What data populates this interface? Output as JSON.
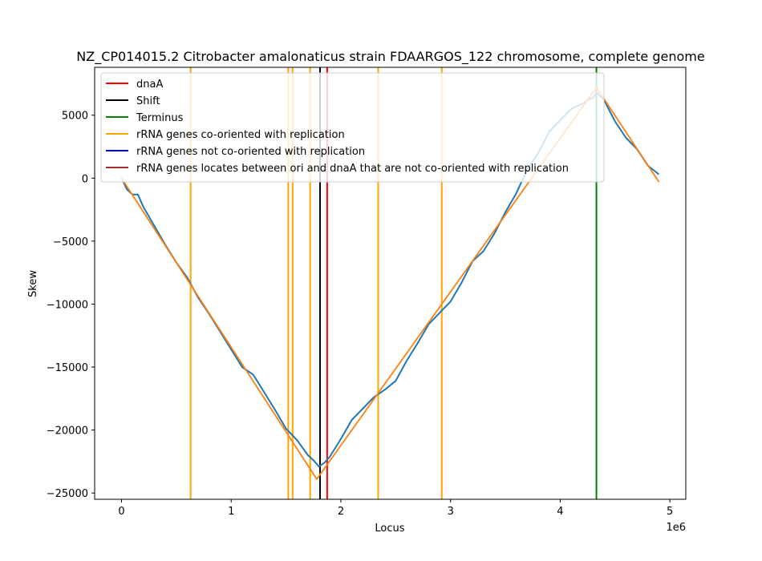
{
  "chart_data": {
    "type": "line",
    "title": "NZ_CP014015.2 Citrobacter amalonaticus strain FDAARGOS_122 chromosome, complete genome",
    "xlabel": "Locus",
    "ylabel": "Skew",
    "x_offset_label": "1e6",
    "xlim": [
      -0.245,
      5.145
    ],
    "ylim": [
      -25500,
      8800
    ],
    "x_ticks": [
      0,
      1,
      2,
      3,
      4,
      5
    ],
    "x_tick_labels": [
      "0",
      "1",
      "2",
      "3",
      "4",
      "5"
    ],
    "y_ticks": [
      5000,
      0,
      -5000,
      -10000,
      -15000,
      -20000,
      -25000
    ],
    "y_tick_labels": [
      "5000",
      "0",
      "−5000",
      "−10000",
      "−15000",
      "−20000",
      "−25000"
    ],
    "legend_position": "top-left",
    "legend": [
      {
        "label": "dnaA",
        "color": "#ff0000"
      },
      {
        "label": "Shift",
        "color": "#000000"
      },
      {
        "label": "Terminus",
        "color": "#008000"
      },
      {
        "label": "rRNA genes co-oriented with replication",
        "color": "#ffa500"
      },
      {
        "label": "rRNA genes not co-oriented with replication",
        "color": "#0000ff"
      },
      {
        "label": "rRNA genes locates between ori and dnaA that are not co-oriented with replication",
        "color": "#a52a2a"
      }
    ],
    "vertical_lines": [
      {
        "name": "rrna-line",
        "x": 0.63,
        "color": "#ffa500"
      },
      {
        "name": "rrna-line",
        "x": 1.52,
        "color": "#ffa500"
      },
      {
        "name": "rrna-line",
        "x": 1.56,
        "color": "#ffa500"
      },
      {
        "name": "rrna-line",
        "x": 1.72,
        "color": "#ffa500"
      },
      {
        "name": "rrna-line",
        "x": 2.34,
        "color": "#ffa500"
      },
      {
        "name": "rrna-line",
        "x": 2.92,
        "color": "#ffa500"
      },
      {
        "name": "shift-line",
        "x": 1.81,
        "color": "#000000"
      },
      {
        "name": "dnaa-line",
        "x": 1.875,
        "color": "#ff0000"
      },
      {
        "name": "terminus-line",
        "x": 4.33,
        "color": "#008000"
      }
    ],
    "series": [
      {
        "name": "Skew",
        "color": "#1f77b4",
        "x": [
          0,
          0.05,
          0.1,
          0.15,
          0.2,
          0.3,
          0.4,
          0.5,
          0.6,
          0.7,
          0.8,
          0.9,
          1.0,
          1.1,
          1.2,
          1.3,
          1.4,
          1.5,
          1.6,
          1.7,
          1.75,
          1.8,
          1.85,
          1.9,
          2.0,
          2.1,
          2.2,
          2.3,
          2.4,
          2.5,
          2.6,
          2.7,
          2.8,
          2.9,
          3.0,
          3.1,
          3.2,
          3.3,
          3.4,
          3.5,
          3.6,
          3.7,
          3.8,
          3.9,
          4.0,
          4.1,
          4.2,
          4.25,
          4.3,
          4.33,
          4.4,
          4.5,
          4.6,
          4.7,
          4.8,
          4.9
        ],
        "values": [
          0,
          -900,
          -1300,
          -1300,
          -2300,
          -3800,
          -5300,
          -6700,
          -7900,
          -9500,
          -10800,
          -12200,
          -13600,
          -15000,
          -15600,
          -17000,
          -18400,
          -19900,
          -20800,
          -22000,
          -22400,
          -22900,
          -22600,
          -22100,
          -20700,
          -19200,
          -18300,
          -17400,
          -16800,
          -16100,
          -14500,
          -13100,
          -11600,
          -10700,
          -9800,
          -8300,
          -6600,
          -5800,
          -4400,
          -2700,
          -1200,
          700,
          2000,
          3700,
          4600,
          5500,
          5900,
          6200,
          6400,
          6800,
          6200,
          4500,
          3200,
          2300,
          1000,
          300
        ]
      },
      {
        "name": "Fit",
        "color": "#ff7f0e",
        "x": [
          0,
          1.78,
          4.33,
          4.9
        ],
        "values": [
          0,
          -23900,
          7200,
          -300
        ]
      }
    ]
  }
}
